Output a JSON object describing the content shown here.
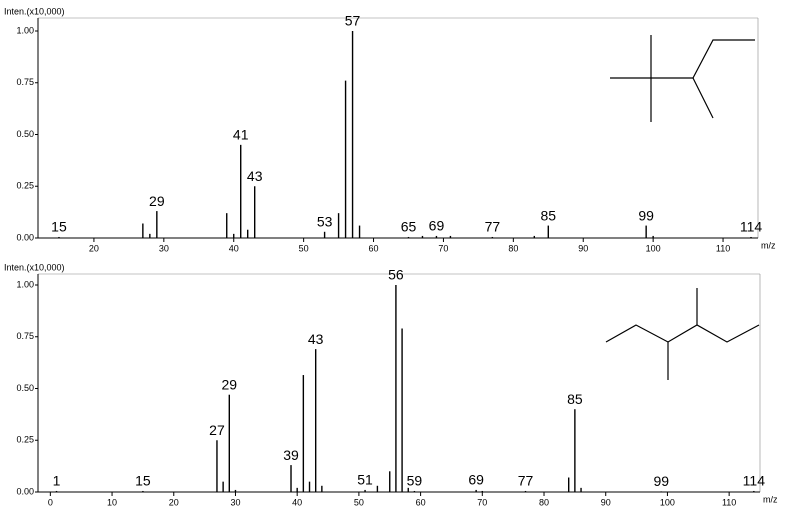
{
  "chart_data": [
    {
      "type": "bar",
      "y_label": "Inten.(x10,000)",
      "x_label": "m/z",
      "x": [
        15,
        27,
        28,
        29,
        39,
        40,
        41,
        42,
        43,
        53,
        55,
        56,
        57,
        58,
        65,
        67,
        69,
        71,
        77,
        83,
        85,
        99,
        100,
        114
      ],
      "values": [
        0.005,
        0.07,
        0.02,
        0.13,
        0.12,
        0.02,
        0.45,
        0.04,
        0.25,
        0.03,
        0.12,
        0.76,
        1.0,
        0.06,
        0.005,
        0.01,
        0.01,
        0.01,
        0.005,
        0.01,
        0.06,
        0.06,
        0.01,
        0.005
      ],
      "annotations": [
        15,
        29,
        41,
        43,
        53,
        57,
        65,
        69,
        77,
        85,
        99,
        114
      ],
      "color": "#000000",
      "xlim": [
        12,
        115
      ],
      "xticks": [
        20,
        30,
        40,
        50,
        60,
        70,
        80,
        90,
        100,
        110
      ],
      "ylim": [
        0,
        1
      ],
      "yticks": [
        {
          "value": 0,
          "label": "0.00"
        },
        {
          "value": 0.25,
          "label": "0.25"
        },
        {
          "value": 0.5,
          "label": "0.50"
        },
        {
          "value": 0.75,
          "label": "0.75"
        },
        {
          "value": 1,
          "label": "1.00"
        }
      ]
    },
    {
      "type": "bar",
      "y_label": "Inten.(x10,000)",
      "x_label": "m/z",
      "x": [
        1,
        15,
        27,
        28,
        29,
        30,
        39,
        40,
        41,
        42,
        43,
        44,
        51,
        53,
        55,
        56,
        57,
        58,
        59,
        69,
        70,
        77,
        84,
        85,
        86,
        99,
        114
      ],
      "values": [
        0.005,
        0.005,
        0.25,
        0.05,
        0.47,
        0.01,
        0.13,
        0.02,
        0.565,
        0.05,
        0.69,
        0.03,
        0.01,
        0.03,
        0.1,
        1.0,
        0.79,
        0.02,
        0.005,
        0.01,
        0.005,
        0.005,
        0.07,
        0.4,
        0.02,
        0.003,
        0.005
      ],
      "annotations": [
        1,
        15,
        27,
        29,
        39,
        43,
        51,
        56,
        59,
        69,
        77,
        85,
        99,
        114
      ],
      "color": "#000000",
      "xlim": [
        -2,
        115
      ],
      "xticks": [
        0,
        10,
        20,
        30,
        40,
        50,
        60,
        70,
        80,
        90,
        100,
        110
      ],
      "ylim": [
        0,
        1
      ],
      "yticks": [
        {
          "value": 0,
          "label": "0.00"
        },
        {
          "value": 0.25,
          "label": "0.25"
        },
        {
          "value": 0.5,
          "label": "0.50"
        },
        {
          "value": 0.75,
          "label": "0.75"
        },
        {
          "value": 1,
          "label": "1.00"
        }
      ]
    }
  ]
}
